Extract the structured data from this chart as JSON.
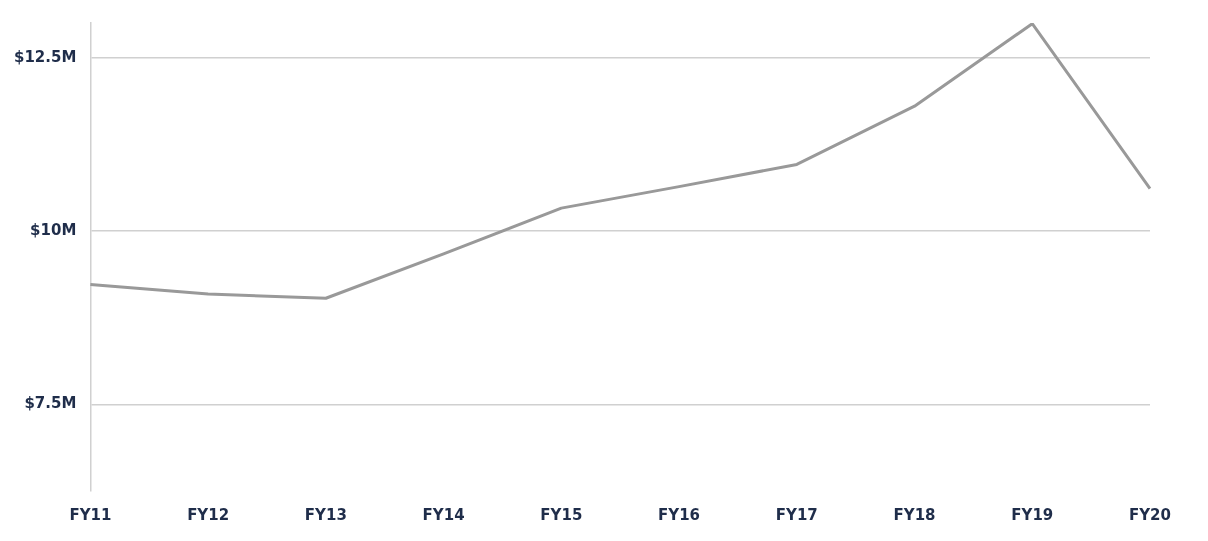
{
  "chart_data": {
    "type": "line",
    "categories": [
      "FY11",
      "FY12",
      "FY13",
      "FY14",
      "FY15",
      "FY16",
      "FY17",
      "FY18",
      "FY19",
      "FY20"
    ],
    "series": [
      {
        "color": "#999999",
        "values": [
          9.23,
          9.09,
          9.03,
          9.67,
          10.33,
          10.64,
          10.96,
          11.8,
          12.99,
          10.61
        ]
      }
    ],
    "ylim": [
      6.25,
      13
    ],
    "yticks": [
      {
        "value": 7.5,
        "label": "$7.5M"
      },
      {
        "value": 10,
        "label": "$10M"
      },
      {
        "value": 12.5,
        "label": "$12.5M"
      }
    ],
    "grid": "y",
    "legend": false,
    "marker": "none",
    "line_style": "solid"
  }
}
